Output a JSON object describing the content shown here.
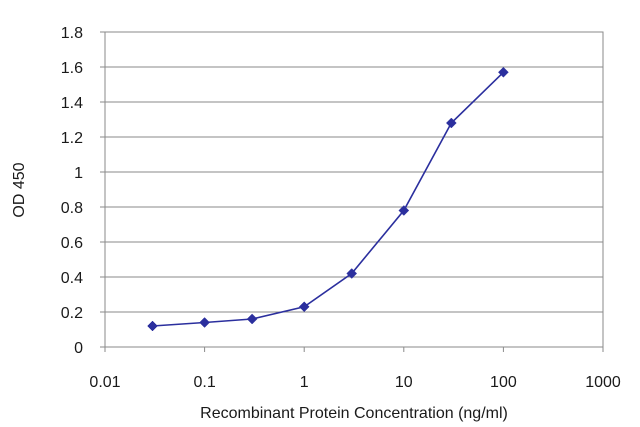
{
  "chart_data": {
    "type": "line",
    "xlabel": "Recombinant Protein Concentration (ng/ml)",
    "ylabel": "OD 450",
    "xscale": "log",
    "xlim": [
      0.01,
      1000
    ],
    "ylim": [
      0,
      1.8
    ],
    "x_ticks": [
      "0.01",
      "0.1",
      "1",
      "10",
      "100",
      "1000"
    ],
    "y_ticks": [
      "0",
      "0.2",
      "0.4",
      "0.6",
      "0.8",
      "1",
      "1.2",
      "1.4",
      "1.6",
      "1.8"
    ],
    "grid": "horizontal",
    "series": [
      {
        "color": "#2b2f9e",
        "x": [
          0.03,
          0.1,
          0.3,
          1,
          3,
          10,
          30,
          100
        ],
        "y": [
          0.12,
          0.14,
          0.16,
          0.23,
          0.42,
          0.78,
          1.28,
          1.57
        ]
      }
    ]
  }
}
